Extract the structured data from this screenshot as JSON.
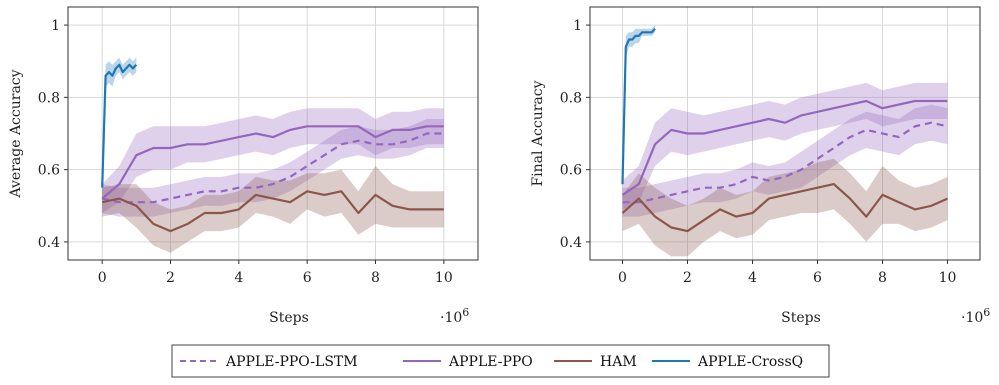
{
  "chart_data": [
    {
      "type": "line",
      "xlabel": "Steps",
      "ylabel": "Average Accuracy",
      "x_multiplier": "·10",
      "x_multiplier_exp": "6",
      "xlim": [
        -1,
        11
      ],
      "ylim": [
        0.35,
        1.05
      ],
      "xticks": [
        0,
        2,
        4,
        6,
        8,
        10
      ],
      "xtick_labels": [
        "0",
        "2",
        "4",
        "6",
        "8",
        "10"
      ],
      "yticks": [
        0.4,
        0.6,
        0.8,
        1
      ],
      "ytick_labels": [
        "0.4",
        "0.6",
        "0.8",
        "1"
      ],
      "grid": true,
      "series": [
        {
          "name": "APPLE-PPO-LSTM",
          "x": [
            0,
            0.5,
            1,
            1.5,
            2,
            2.5,
            3,
            3.5,
            4,
            4.5,
            5,
            5.5,
            6,
            6.5,
            7,
            7.5,
            8,
            8.5,
            9,
            9.5,
            10
          ],
          "y": [
            0.52,
            0.51,
            0.51,
            0.51,
            0.52,
            0.53,
            0.54,
            0.54,
            0.55,
            0.55,
            0.56,
            0.58,
            0.61,
            0.64,
            0.67,
            0.68,
            0.67,
            0.67,
            0.68,
            0.7,
            0.7
          ],
          "band": [
            0.04,
            0.04,
            0.04,
            0.04,
            0.04,
            0.04,
            0.04,
            0.04,
            0.04,
            0.04,
            0.04,
            0.04,
            0.04,
            0.04,
            0.04,
            0.04,
            0.04,
            0.04,
            0.04,
            0.04,
            0.04
          ]
        },
        {
          "name": "APPLE-PPO",
          "x": [
            0,
            0.5,
            1,
            1.5,
            2,
            2.5,
            3,
            3.5,
            4,
            4.5,
            5,
            5.5,
            6,
            6.5,
            7,
            7.5,
            8,
            8.5,
            9,
            9.5,
            10
          ],
          "y": [
            0.52,
            0.56,
            0.64,
            0.66,
            0.66,
            0.67,
            0.67,
            0.68,
            0.69,
            0.7,
            0.69,
            0.71,
            0.72,
            0.72,
            0.72,
            0.72,
            0.69,
            0.71,
            0.71,
            0.72,
            0.72
          ],
          "band": [
            0.04,
            0.05,
            0.06,
            0.06,
            0.06,
            0.05,
            0.05,
            0.05,
            0.05,
            0.05,
            0.05,
            0.05,
            0.05,
            0.05,
            0.05,
            0.05,
            0.05,
            0.05,
            0.05,
            0.05,
            0.05
          ]
        },
        {
          "name": "HAM",
          "x": [
            0,
            0.5,
            1,
            1.5,
            2,
            2.5,
            3,
            3.5,
            4,
            4.5,
            5,
            5.5,
            6,
            6.5,
            7,
            7.5,
            8,
            8.5,
            9,
            9.5,
            10
          ],
          "y": [
            0.51,
            0.52,
            0.5,
            0.45,
            0.43,
            0.45,
            0.48,
            0.48,
            0.49,
            0.53,
            0.52,
            0.51,
            0.54,
            0.53,
            0.54,
            0.48,
            0.53,
            0.5,
            0.49,
            0.49,
            0.49
          ],
          "band": [
            0.04,
            0.04,
            0.06,
            0.06,
            0.06,
            0.05,
            0.05,
            0.05,
            0.05,
            0.05,
            0.05,
            0.06,
            0.05,
            0.06,
            0.06,
            0.06,
            0.08,
            0.06,
            0.05,
            0.05,
            0.05
          ]
        },
        {
          "name": "APPLE-CrossQ",
          "x": [
            0,
            0.1,
            0.2,
            0.3,
            0.4,
            0.5,
            0.6,
            0.7,
            0.8,
            0.9,
            1.0
          ],
          "y": [
            0.55,
            0.86,
            0.87,
            0.86,
            0.88,
            0.89,
            0.87,
            0.88,
            0.89,
            0.88,
            0.89
          ],
          "band": [
            0.02,
            0.03,
            0.03,
            0.03,
            0.02,
            0.02,
            0.02,
            0.02,
            0.02,
            0.02,
            0.02
          ]
        }
      ]
    },
    {
      "type": "line",
      "xlabel": "Steps",
      "ylabel": "Final Accuracy",
      "x_multiplier": "·10",
      "x_multiplier_exp": "6",
      "xlim": [
        -1,
        11
      ],
      "ylim": [
        0.35,
        1.05
      ],
      "xticks": [
        0,
        2,
        4,
        6,
        8,
        10
      ],
      "xtick_labels": [
        "0",
        "2",
        "4",
        "6",
        "8",
        "10"
      ],
      "yticks": [
        0.4,
        0.6,
        0.8,
        1
      ],
      "ytick_labels": [
        "0.4",
        "0.6",
        "0.8",
        "1"
      ],
      "grid": true,
      "series": [
        {
          "name": "APPLE-PPO-LSTM",
          "x": [
            0,
            0.5,
            1,
            1.5,
            2,
            2.5,
            3,
            3.5,
            4,
            4.5,
            5,
            5.5,
            6,
            6.5,
            7,
            7.5,
            8,
            8.5,
            9,
            9.5,
            10
          ],
          "y": [
            0.51,
            0.51,
            0.52,
            0.53,
            0.54,
            0.55,
            0.55,
            0.56,
            0.58,
            0.57,
            0.58,
            0.6,
            0.63,
            0.66,
            0.69,
            0.71,
            0.7,
            0.69,
            0.72,
            0.73,
            0.72
          ],
          "band": [
            0.04,
            0.04,
            0.04,
            0.04,
            0.04,
            0.04,
            0.04,
            0.04,
            0.04,
            0.04,
            0.04,
            0.05,
            0.05,
            0.05,
            0.05,
            0.05,
            0.05,
            0.05,
            0.05,
            0.05,
            0.05
          ]
        },
        {
          "name": "APPLE-PPO",
          "x": [
            0,
            0.5,
            1,
            1.5,
            2,
            2.5,
            3,
            3.5,
            4,
            4.5,
            5,
            5.5,
            6,
            6.5,
            7,
            7.5,
            8,
            8.5,
            9,
            9.5,
            10
          ],
          "y": [
            0.53,
            0.56,
            0.67,
            0.71,
            0.7,
            0.7,
            0.71,
            0.72,
            0.73,
            0.74,
            0.73,
            0.75,
            0.76,
            0.77,
            0.78,
            0.79,
            0.77,
            0.78,
            0.79,
            0.79,
            0.79
          ],
          "band": [
            0.04,
            0.05,
            0.06,
            0.06,
            0.06,
            0.05,
            0.05,
            0.05,
            0.05,
            0.05,
            0.05,
            0.05,
            0.05,
            0.05,
            0.05,
            0.05,
            0.05,
            0.05,
            0.05,
            0.05,
            0.05
          ]
        },
        {
          "name": "HAM",
          "x": [
            0,
            0.5,
            1,
            1.5,
            2,
            2.5,
            3,
            3.5,
            4,
            4.5,
            5,
            5.5,
            6,
            6.5,
            7,
            7.5,
            8,
            8.5,
            9,
            9.5,
            10
          ],
          "y": [
            0.48,
            0.52,
            0.47,
            0.44,
            0.43,
            0.46,
            0.49,
            0.47,
            0.48,
            0.52,
            0.53,
            0.54,
            0.55,
            0.56,
            0.52,
            0.47,
            0.53,
            0.51,
            0.49,
            0.5,
            0.52
          ],
          "band": [
            0.05,
            0.07,
            0.08,
            0.08,
            0.07,
            0.06,
            0.06,
            0.06,
            0.06,
            0.06,
            0.06,
            0.06,
            0.07,
            0.07,
            0.07,
            0.07,
            0.08,
            0.06,
            0.06,
            0.06,
            0.06
          ]
        },
        {
          "name": "APPLE-CrossQ",
          "x": [
            0,
            0.1,
            0.2,
            0.3,
            0.4,
            0.5,
            0.6,
            0.7,
            0.8,
            0.9,
            1.0
          ],
          "y": [
            0.56,
            0.94,
            0.96,
            0.96,
            0.97,
            0.97,
            0.98,
            0.98,
            0.98,
            0.98,
            0.99
          ],
          "band": [
            0.02,
            0.03,
            0.02,
            0.02,
            0.02,
            0.02,
            0.01,
            0.01,
            0.01,
            0.01,
            0.01
          ]
        }
      ]
    }
  ],
  "legend": {
    "placement": "bottom-center",
    "entries": [
      {
        "label": "APPLE-PPO-LSTM",
        "color": "#9467bd",
        "dash": true
      },
      {
        "label": "APPLE-PPO",
        "color": "#9467bd",
        "dash": false
      },
      {
        "label": "HAM",
        "color": "#8c564b",
        "dash": false
      },
      {
        "label": "APPLE-CrossQ",
        "color": "#1f77b4",
        "dash": false
      }
    ]
  },
  "colors": {
    "APPLE-PPO-LSTM": "#9467bd",
    "APPLE-PPO": "#9467bd",
    "HAM": "#8c564b",
    "APPLE-CrossQ": "#1f77b4",
    "grid": "#d9d9d9",
    "axis": "#333333"
  }
}
